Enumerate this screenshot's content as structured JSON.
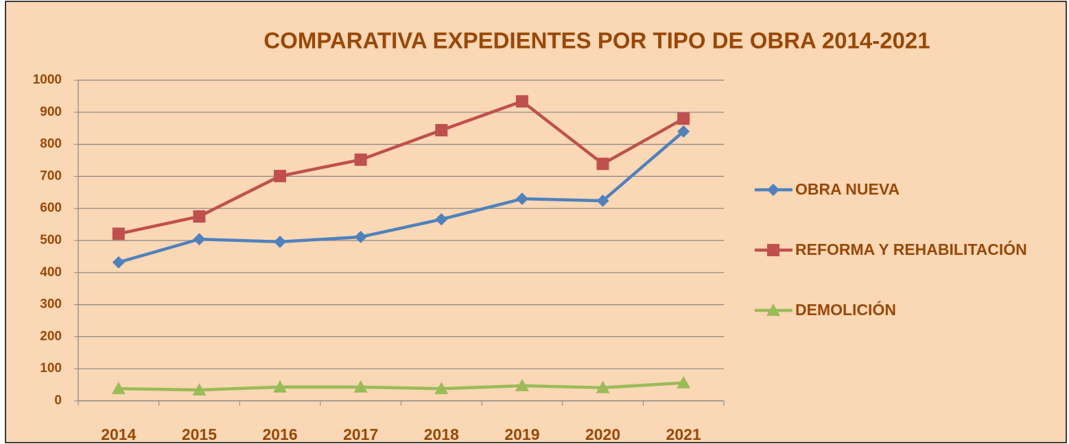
{
  "chart_data": {
    "type": "line",
    "title": "COMPARATIVA EXPEDIENTES POR TIPO DE OBRA  2014-2021",
    "categories": [
      "2014",
      "2015",
      "2016",
      "2017",
      "2018",
      "2019",
      "2020",
      "2021"
    ],
    "series": [
      {
        "name": "OBRA NUEVA",
        "color": "#4f81bd",
        "marker": "diamond",
        "values": [
          432,
          504,
          496,
          511,
          566,
          630,
          624,
          840
        ]
      },
      {
        "name": "REFORMA Y REHABILITACIÓN",
        "color": "#c0504d",
        "marker": "square",
        "values": [
          521,
          575,
          701,
          752,
          844,
          934,
          739,
          880
        ]
      },
      {
        "name": "DEMOLICIÓN",
        "color": "#9bbb59",
        "marker": "triangle",
        "values": [
          38,
          34,
          43,
          43,
          38,
          47,
          41,
          56
        ]
      }
    ],
    "ylim": [
      0,
      1000
    ],
    "yticks": [
      0,
      100,
      200,
      300,
      400,
      500,
      600,
      700,
      800,
      900,
      1000
    ],
    "grid": true,
    "legend": "right"
  }
}
